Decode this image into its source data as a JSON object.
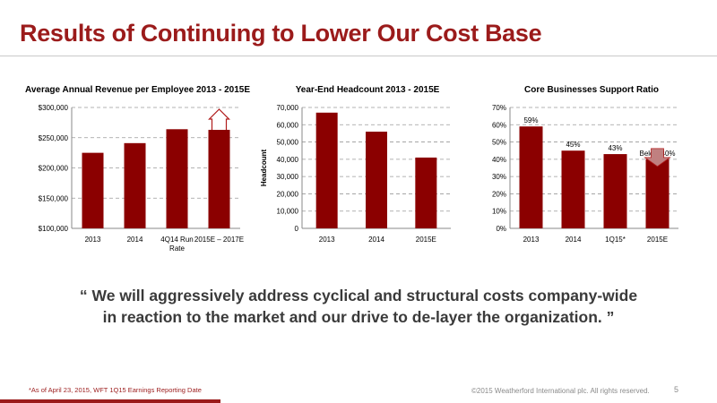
{
  "slide": {
    "title": "Results of Continuing to Lower Our Cost Base",
    "quote_line1": "“ We will aggressively address cyclical and structural costs company-wide",
    "quote_line2": "in reaction to the market and our drive to de-layer the organization. ”",
    "footnote": "*As of April 23, 2015, WFT 1Q15 Earnings Reporting Date",
    "copyright": "©2015 Weatherford International plc.  All rights reserved.",
    "page_number": "5"
  },
  "colors": {
    "bar": "#8b0000",
    "accent": "#9b1b1b",
    "grid": "#9a9a9a",
    "arrow_up_stroke": "#b01c1c",
    "arrow_down_fill": "#c08080"
  },
  "chart_data": [
    {
      "type": "bar",
      "title": "Average Annual Revenue per Employee 2013 - 2015E",
      "categories": [
        "2013",
        "2014",
        "4Q14 Run Rate",
        "2015E – 2017E"
      ],
      "values": [
        225000,
        241000,
        264000,
        263000
      ],
      "ylim": [
        100000,
        300000
      ],
      "yticks": [
        100000,
        150000,
        200000,
        250000,
        300000
      ],
      "ytick_labels": [
        "$100,000",
        "$150,000",
        "$200,000",
        "$250,000",
        "$300,000"
      ],
      "xlabel": "",
      "ylabel": "",
      "grid": true,
      "annotation": {
        "kind": "up-arrow",
        "category": "2015E – 2017E"
      }
    },
    {
      "type": "bar",
      "title": "Year-End Headcount 2013 - 2015E",
      "categories": [
        "2013",
        "2014",
        "2015E"
      ],
      "values": [
        67000,
        56000,
        41000
      ],
      "ylim": [
        0,
        70000
      ],
      "yticks": [
        0,
        10000,
        20000,
        30000,
        40000,
        50000,
        60000,
        70000
      ],
      "ytick_labels": [
        "0",
        "10,000",
        "20,000",
        "30,000",
        "40,000",
        "50,000",
        "60,000",
        "70,000"
      ],
      "xlabel": "",
      "ylabel": "Headcount",
      "grid": true
    },
    {
      "type": "bar",
      "title": "Core Businesses Support Ratio",
      "categories": [
        "2013",
        "2014",
        "1Q15*",
        "2015E"
      ],
      "values": [
        59,
        45,
        43,
        40
      ],
      "data_labels": [
        "59%",
        "45%",
        "43%",
        "Below 40%"
      ],
      "ylim": [
        0,
        70
      ],
      "yticks": [
        0,
        10,
        20,
        30,
        40,
        50,
        60,
        70
      ],
      "ytick_labels": [
        "0%",
        "10%",
        "20%",
        "30%",
        "40%",
        "50%",
        "60%",
        "70%"
      ],
      "xlabel": "",
      "ylabel": "",
      "grid": true,
      "annotation": {
        "kind": "down-arrow",
        "category": "2015E"
      }
    }
  ]
}
